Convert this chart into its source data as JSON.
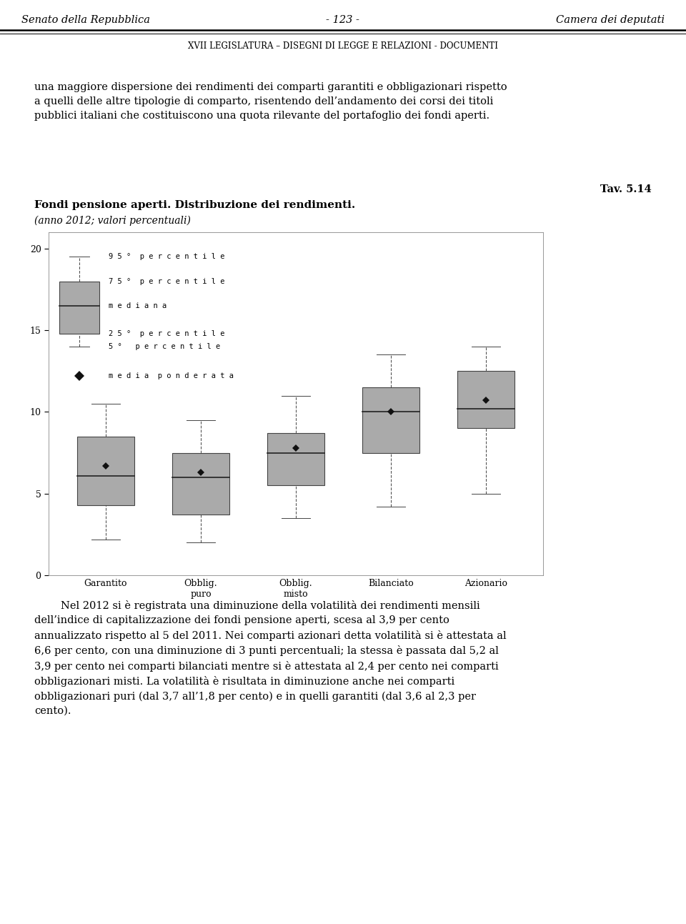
{
  "page_header_left": "Senato della Repubblica",
  "page_header_center": "- 123 -",
  "page_header_right": "Camera dei deputati",
  "page_subheader": "XVII LEGISLATURA – DISEGNI DI LEGGE E RELAZIONI - DOCUMENTI",
  "tav_label": "Tav. 5.14",
  "chart_title": "Fondi pensione aperti. Distribuzione dei rendimenti.",
  "chart_subtitle": "(anno 2012; valori percentuali)",
  "categories": [
    "Garantito",
    "Obblig.\npuro",
    "Obblig.\nmisto",
    "Bilanciato",
    "Azionario"
  ],
  "boxes": [
    {
      "p5": 2.2,
      "p25": 4.3,
      "median": 6.1,
      "p75": 8.5,
      "p95": 10.5,
      "mean": 6.7
    },
    {
      "p5": 2.0,
      "p25": 3.7,
      "median": 6.0,
      "p75": 7.5,
      "p95": 9.5,
      "mean": 6.3
    },
    {
      "p5": 3.5,
      "p25": 5.5,
      "median": 7.5,
      "p75": 8.7,
      "p95": 11.0,
      "mean": 7.8
    },
    {
      "p5": 4.2,
      "p25": 7.5,
      "median": 10.0,
      "p75": 11.5,
      "p95": 13.5,
      "mean": 10.0
    },
    {
      "p5": 5.0,
      "p25": 9.0,
      "median": 10.2,
      "p75": 12.5,
      "p95": 14.0,
      "mean": 10.7
    }
  ],
  "legend_box": {
    "p5": 14.0,
    "p25": 14.8,
    "median": 16.5,
    "p75": 18.0,
    "p95": 19.5,
    "mean": 12.2
  },
  "box_color": "#aaaaaa",
  "box_edgecolor": "#444444",
  "median_color": "#222222",
  "whisker_color": "#444444",
  "mean_color": "#111111",
  "ylim": [
    0,
    21
  ],
  "yticks": [
    0,
    5,
    10,
    15,
    20
  ],
  "legend_items": [
    "9 5 °  p e r c e n t i l e",
    "7 5 °  p e r c e n t i l e",
    "m e d i a n a",
    "2 5 °  p e r c e n t i l e",
    "5 °   p e r c e n t i l e",
    "m e d i a  p o n d e r a t a"
  ],
  "text_body1": "una maggiore dispersione dei rendimenti dei comparti garantiti e obbligazionari rispetto\na quelli delle altre tipologie di comparto, risentendo dell’andamento dei corsi dei titoli\npubblici italiani che costituiscono una quota rilevante del portafoglio dei fondi aperti.",
  "text_body2": "        Nel 2012 si è registrata una diminuzione della volatilità dei rendimenti mensili\ndell’indice di capitalizzazione dei fondi pensione aperti, scesa al 3,9 per cento\nannualizzato rispetto al 5 del 2011. Nei comparti azionari detta volatilità si è attestata al\n6,6 per cento, con una diminuzione di 3 punti percentuali; la stessa è passata dal 5,2 al\n3,9 per cento nei comparti bilanciati mentre si è attestata al 2,4 per cento nei comparti\nobbligazionari misti. La volatilità è risultata in diminuzione anche nei comparti\nobbligazionari puri (dal 3,7 all’1,8 per cento) e in quelli garantiti (dal 3,6 al 2,3 per\ncento).",
  "background_color": "#ffffff"
}
